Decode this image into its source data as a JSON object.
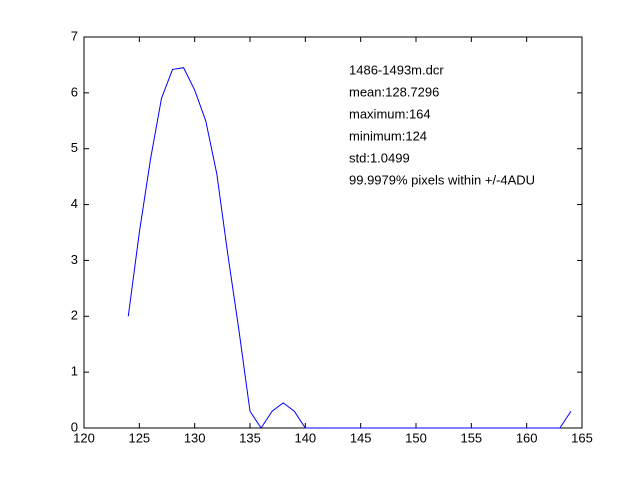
{
  "chart_data": {
    "type": "line",
    "x": [
      124,
      125,
      126,
      127,
      128,
      129,
      130,
      131,
      132,
      133,
      134,
      135,
      136,
      137,
      138,
      139,
      140,
      141,
      142,
      143,
      144,
      145,
      146,
      147,
      148,
      149,
      150,
      151,
      152,
      153,
      154,
      155,
      156,
      157,
      158,
      159,
      160,
      161,
      162,
      163,
      164
    ],
    "series": [
      {
        "color": "#0000ff",
        "values": [
          2.0,
          3.5,
          4.8,
          5.9,
          6.42,
          6.45,
          6.05,
          5.5,
          4.55,
          3.1,
          1.75,
          0.3,
          0,
          0.3,
          0.45,
          0.3,
          0,
          0,
          0,
          0,
          0,
          0,
          0,
          0,
          0,
          0,
          0,
          0,
          0,
          0,
          0,
          0,
          0,
          0,
          0,
          0,
          0,
          0,
          0,
          0,
          0.3
        ]
      }
    ],
    "xlim": [
      120,
      165
    ],
    "xticks": [
      120,
      125,
      130,
      135,
      140,
      145,
      150,
      155,
      160,
      165
    ],
    "ylim": [
      0,
      7
    ],
    "yticks": [
      0,
      1,
      2,
      3,
      4,
      5,
      6,
      7
    ],
    "annotations": [
      "1486-1493m.dcr",
      "mean:128.7296",
      "maximum:164",
      "minimum:124",
      "std:1.0499",
      "99.9979% pixels within +/-4ADU"
    ]
  }
}
